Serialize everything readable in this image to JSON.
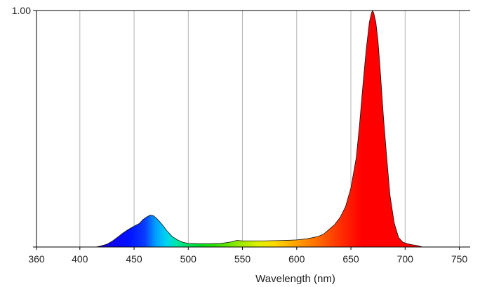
{
  "chart_data": {
    "type": "area",
    "title": "",
    "xlabel": "Wavelength (nm)",
    "ylabel": "",
    "xlim": [
      360,
      760
    ],
    "ylim": [
      0,
      1.0
    ],
    "grid": true,
    "x_ticks": [
      360,
      400,
      450,
      500,
      550,
      600,
      650,
      700,
      750
    ],
    "x_tick_labels": [
      "360",
      "400",
      "450",
      "500",
      "550",
      "600",
      "650",
      "700",
      "750"
    ],
    "y_tick_labels": [
      "1.00"
    ],
    "fill": "visible-spectrum gradient",
    "series": [
      {
        "x": [
          415,
          420,
          425,
          430,
          435,
          440,
          445,
          450,
          455,
          458,
          462,
          465,
          468,
          471,
          475,
          480,
          485,
          490,
          495,
          500,
          510,
          520,
          530,
          540,
          545,
          550,
          560,
          570,
          580,
          590,
          600,
          610,
          620,
          625,
          630,
          635,
          640,
          645,
          650,
          655,
          658,
          661,
          664,
          667,
          669,
          670,
          671,
          673,
          675,
          677,
          680,
          683,
          686,
          690,
          694,
          698,
          702,
          706,
          710,
          713,
          716
        ],
        "y": [
          0.0,
          0.005,
          0.012,
          0.025,
          0.042,
          0.06,
          0.075,
          0.088,
          0.1,
          0.115,
          0.128,
          0.135,
          0.132,
          0.12,
          0.1,
          0.07,
          0.045,
          0.03,
          0.02,
          0.015,
          0.014,
          0.014,
          0.015,
          0.022,
          0.028,
          0.026,
          0.026,
          0.026,
          0.027,
          0.028,
          0.03,
          0.035,
          0.045,
          0.055,
          0.075,
          0.095,
          0.125,
          0.17,
          0.25,
          0.38,
          0.52,
          0.68,
          0.83,
          0.95,
          0.99,
          1.0,
          0.99,
          0.95,
          0.87,
          0.75,
          0.55,
          0.38,
          0.22,
          0.1,
          0.04,
          0.02,
          0.014,
          0.01,
          0.007,
          0.004,
          0.0
        ]
      }
    ]
  }
}
